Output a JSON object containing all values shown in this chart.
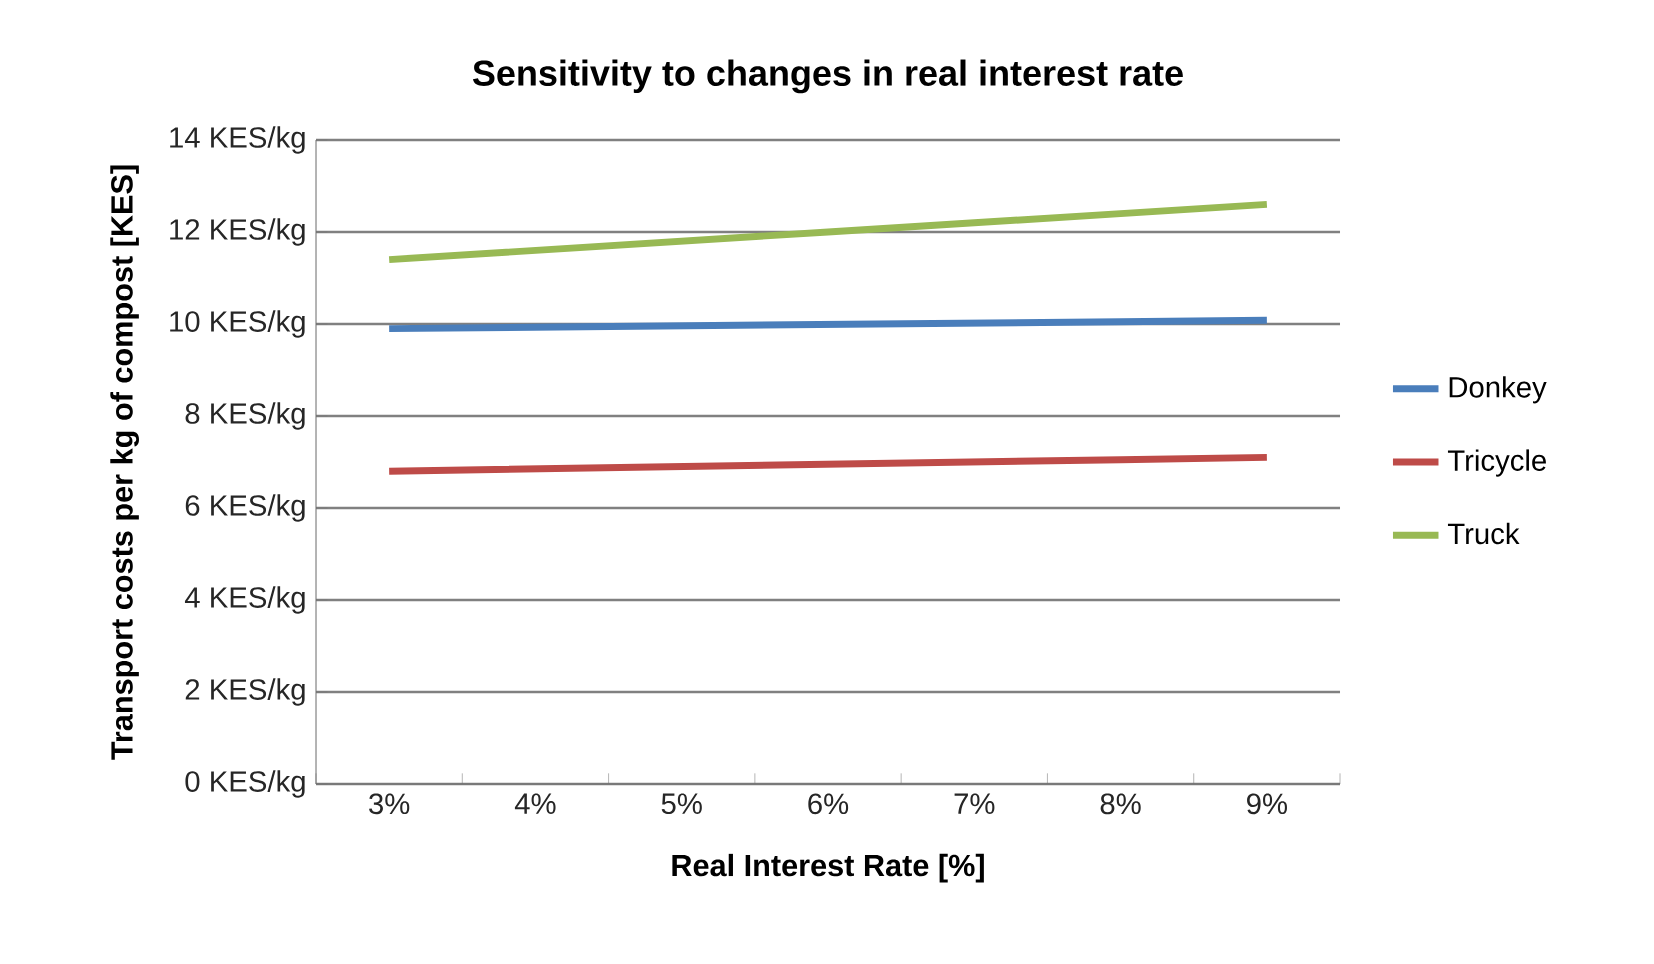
{
  "chart_data": {
    "type": "line",
    "title": "Sensitivity to changes in real interest rate",
    "xlabel": "Real Interest Rate [%]",
    "ylabel": "Transport costs per kg of compost [KES]",
    "categories": [
      "3%",
      "4%",
      "5%",
      "6%",
      "7%",
      "8%",
      "9%"
    ],
    "series": [
      {
        "name": "Donkey",
        "color": "#4a7ebb",
        "values": [
          9.9,
          9.93,
          9.96,
          9.99,
          10.02,
          10.05,
          10.08
        ]
      },
      {
        "name": "Tricycle",
        "color": "#be4b48",
        "values": [
          6.8,
          6.85,
          6.9,
          6.95,
          7.0,
          7.05,
          7.1
        ]
      },
      {
        "name": "Truck",
        "color": "#98b954",
        "values": [
          11.4,
          11.6,
          11.8,
          12.0,
          12.2,
          12.4,
          12.6
        ]
      }
    ],
    "ylim": [
      0,
      14
    ],
    "yticks": [
      {
        "value": 0,
        "label": "0 KES/kg"
      },
      {
        "value": 2,
        "label": "2 KES/kg"
      },
      {
        "value": 4,
        "label": "4 KES/kg"
      },
      {
        "value": 6,
        "label": "6 KES/kg"
      },
      {
        "value": 8,
        "label": "8 KES/kg"
      },
      {
        "value": 10,
        "label": "10 KES/kg"
      },
      {
        "value": 12,
        "label": "12 KES/kg"
      },
      {
        "value": 14,
        "label": "14 KES/kg"
      }
    ],
    "grid": "y",
    "legend": "right"
  }
}
